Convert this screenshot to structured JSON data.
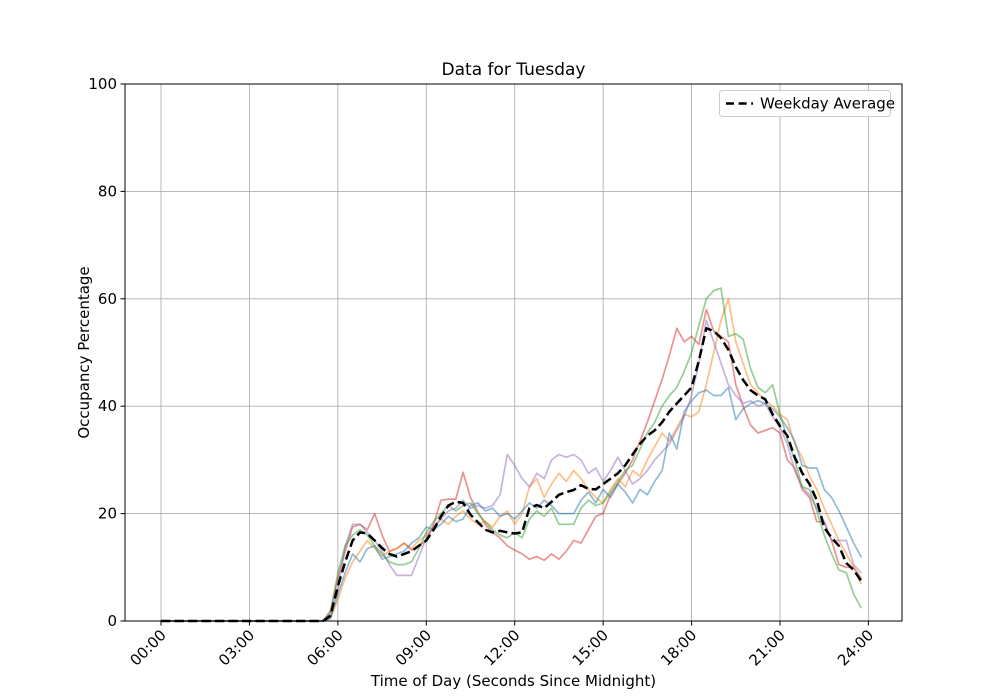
{
  "chart": {
    "title": "Data for Tuesday",
    "xlabel": "Time of Day (Seconds Since Midnight)",
    "ylabel": "Occupancy Percentage",
    "legend": {
      "label": "Weekday Average"
    }
  },
  "chart_data": {
    "type": "line",
    "title": "Data for Tuesday",
    "xlabel": "Time of Day (Seconds Since Midnight)",
    "ylabel": "Occupancy Percentage",
    "grid": true,
    "legend_position": "upper right",
    "background": "#ffffff",
    "grid_color": "#b0b0b0",
    "ylim": [
      0,
      100
    ],
    "y_ticks": [
      0,
      20,
      40,
      60,
      80,
      100
    ],
    "x_tick_hours": [
      0,
      3,
      6,
      9,
      12,
      15,
      18,
      21,
      24
    ],
    "x_tick_labels": [
      "00:00",
      "03:00",
      "06:00",
      "09:00",
      "12:00",
      "15:00",
      "18:00",
      "21:00",
      "24:00"
    ],
    "x_hours": {
      "start": 0,
      "step": 0.25,
      "count": 96
    },
    "series": [
      {
        "id": "day-line-red",
        "color": "#d62728",
        "alpha": 0.5,
        "values": [
          0,
          0,
          0,
          0,
          0,
          0,
          0,
          0,
          0,
          0,
          0,
          0,
          0,
          0,
          0,
          0,
          0,
          0,
          0,
          0,
          0,
          0,
          0,
          2,
          8,
          13,
          17.5,
          18,
          17,
          20,
          16,
          13,
          13.5,
          14.5,
          13.2,
          14,
          15,
          18,
          22.5,
          22.7,
          22.7,
          27.7,
          23,
          20.3,
          18,
          16.5,
          15.5,
          14,
          13.2,
          12.5,
          11.5,
          12,
          11.3,
          12.5,
          11.5,
          13,
          15,
          14.5,
          17,
          19.5,
          20,
          23.5,
          25.5,
          27.5,
          30,
          33.5,
          37,
          41,
          45,
          49.5,
          54.5,
          52,
          53,
          51.5,
          58,
          54,
          53,
          52,
          44,
          40,
          36.5,
          35,
          35.5,
          36,
          35,
          30,
          28.5,
          24.5,
          23,
          18.5,
          18.5,
          15,
          10.5,
          10,
          10,
          8
        ]
      },
      {
        "id": "day-line-orange",
        "color": "#ff7f0e",
        "alpha": 0.5,
        "values": [
          0,
          0,
          0,
          0,
          0,
          0,
          0,
          0,
          0,
          0,
          0,
          0,
          0,
          0,
          0,
          0,
          0,
          0,
          0,
          0,
          0,
          0,
          0,
          0.5,
          4,
          8,
          11,
          13,
          15,
          13.5,
          12,
          13,
          13.5,
          14.5,
          13.5,
          15,
          16,
          17.5,
          19,
          18,
          19.5,
          20.5,
          19,
          18,
          18.5,
          17.5,
          19.5,
          20.5,
          18,
          20,
          25,
          26.5,
          23,
          25.5,
          27.5,
          26,
          28,
          26.5,
          24.5,
          23,
          22,
          24.5,
          26.5,
          25,
          28,
          27,
          30,
          32.5,
          35,
          33.5,
          36,
          38.5,
          38,
          39,
          44,
          50,
          56,
          60,
          52,
          48,
          44,
          42.5,
          41,
          40,
          38.5,
          37.5,
          33,
          30.5,
          27,
          24.5,
          21,
          18,
          15,
          12.5,
          10,
          7
        ]
      },
      {
        "id": "day-line-purple",
        "color": "#9467bd",
        "alpha": 0.5,
        "values": [
          0,
          0,
          0,
          0,
          0,
          0,
          0,
          0,
          0,
          0,
          0,
          0,
          0,
          0,
          0,
          0,
          0,
          0,
          0,
          0,
          0,
          0,
          0,
          1,
          6,
          14,
          18,
          18,
          16.5,
          15,
          13,
          10.5,
          8.5,
          8.5,
          8.5,
          12,
          15.5,
          17.5,
          19,
          20.5,
          21,
          22.5,
          21,
          21.5,
          21,
          21.5,
          23.5,
          31,
          29,
          26.5,
          25,
          27.5,
          26.5,
          30,
          31,
          30.5,
          31,
          30,
          27.5,
          28.5,
          26,
          28,
          30.5,
          28,
          25.5,
          26.5,
          28,
          30,
          31.5,
          33,
          35.5,
          38,
          42,
          48,
          56,
          52,
          48,
          44,
          42,
          40.5,
          41,
          40,
          40.5,
          38,
          36,
          33,
          28,
          25,
          23.5,
          21,
          18.5,
          15,
          15,
          15,
          10.5,
          9
        ]
      },
      {
        "id": "day-line-blue",
        "color": "#1f77b4",
        "alpha": 0.5,
        "values": [
          0,
          0,
          0,
          0,
          0,
          0,
          0,
          0,
          0,
          0,
          0,
          0,
          0,
          0,
          0,
          0,
          0,
          0,
          0,
          0,
          0,
          0,
          0,
          0.5,
          5,
          9,
          12.5,
          11,
          13.5,
          14,
          11.5,
          12,
          12.5,
          13,
          14.5,
          15.5,
          17.5,
          17,
          18,
          19.5,
          18.5,
          19,
          21.5,
          22,
          20.5,
          21,
          19.5,
          20,
          19,
          20.5,
          22,
          21,
          22.5,
          21.5,
          20,
          20,
          20,
          22.5,
          24,
          22,
          24.5,
          23,
          25.5,
          24,
          22,
          24.5,
          23.5,
          26,
          28,
          35,
          32,
          39,
          41,
          42.5,
          43,
          42,
          42,
          43.5,
          37.5,
          39.5,
          40.5,
          41,
          40.5,
          39.5,
          38,
          36,
          33.5,
          29,
          28.5,
          28.5,
          24.5,
          23,
          20.5,
          17.5,
          14.5,
          12
        ]
      },
      {
        "id": "day-line-green",
        "color": "#2ca02c",
        "alpha": 0.5,
        "values": [
          0,
          0,
          0,
          0,
          0,
          0,
          0,
          0,
          0,
          0,
          0,
          0,
          0,
          0,
          0,
          0,
          0,
          0,
          0,
          0,
          0,
          0,
          0,
          1.5,
          9,
          14,
          16,
          17,
          16,
          14,
          12.5,
          11,
          10.5,
          10.5,
          11,
          13.5,
          16.5,
          18.5,
          20,
          21.5,
          20.5,
          21.5,
          22,
          20,
          18.5,
          17,
          16,
          15.5,
          16.5,
          15.5,
          19,
          20.5,
          19.5,
          21,
          18,
          18,
          18,
          21,
          22.5,
          21.5,
          22,
          24,
          26,
          28,
          29,
          32,
          35,
          37,
          40,
          42,
          43.5,
          46.5,
          50,
          55,
          60,
          61.5,
          62,
          53,
          53.5,
          52.5,
          47,
          43.5,
          42.5,
          44,
          38.5,
          34,
          30,
          25,
          24.5,
          20.5,
          16,
          12.5,
          9.5,
          9,
          5,
          2.5
        ]
      }
    ],
    "average": {
      "name": "Weekday Average",
      "color": "#000000",
      "style": "dashed",
      "linewidth": 2.5,
      "values": [
        0,
        0,
        0,
        0,
        0,
        0,
        0,
        0,
        0,
        0,
        0,
        0,
        0,
        0,
        0,
        0,
        0,
        0,
        0,
        0,
        0,
        0,
        0,
        1,
        6.5,
        11,
        15,
        16.5,
        16.3,
        15,
        13.6,
        12.5,
        12,
        12.5,
        13,
        14,
        15,
        17,
        19.5,
        21.5,
        22.2,
        22,
        19.8,
        18.4,
        17,
        16.5,
        16.8,
        16.5,
        16.3,
        16.5,
        21,
        21.6,
        21,
        22.2,
        23.5,
        24,
        24.4,
        25.3,
        24.6,
        24.5,
        25.5,
        26.5,
        27.5,
        29,
        31,
        33,
        34.5,
        35.5,
        37,
        39,
        40.5,
        42,
        43.5,
        48.5,
        54.5,
        54,
        52.7,
        50.5,
        47.3,
        44.9,
        43,
        42,
        41.3,
        38.5,
        36.3,
        34.5,
        30.5,
        27.6,
        25.5,
        22.5,
        17.4,
        15.5,
        14,
        10.8,
        9.5,
        7.5
      ]
    }
  }
}
